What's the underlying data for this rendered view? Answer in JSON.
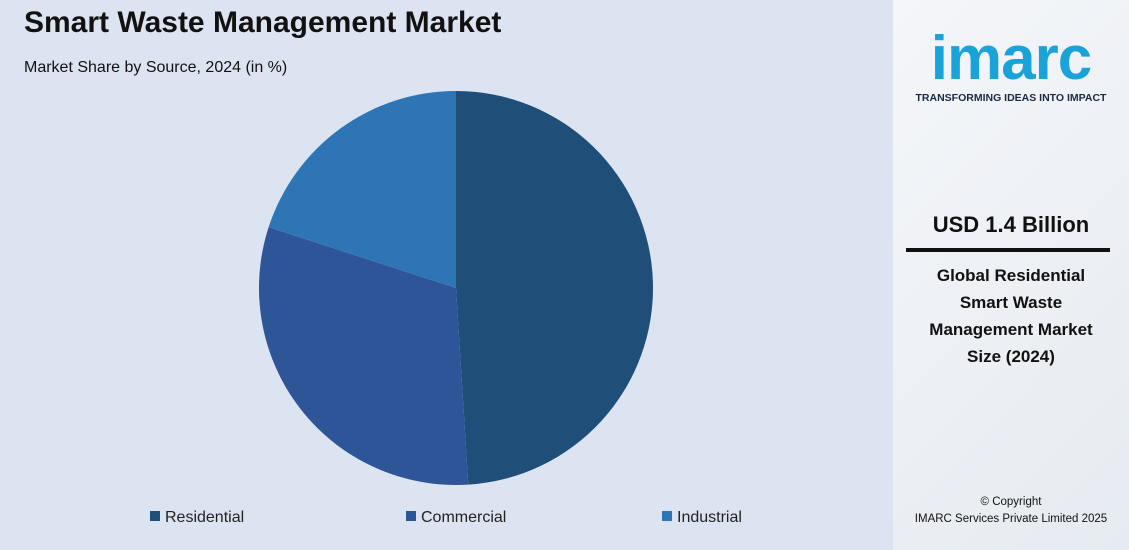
{
  "chart_data": {
    "type": "pie",
    "title": "Smart Waste Management Market",
    "subtitle": "Market Share by Source, 2024 (in %)",
    "categories": [
      "Residential",
      "Commercial",
      "Industrial"
    ],
    "values": [
      49,
      31,
      20
    ],
    "colors": [
      "#1f4e79",
      "#2e5597",
      "#2e75b6"
    ]
  },
  "sidebar": {
    "logo": "imarc",
    "tagline": "TRANSFORMING IDEAS INTO IMPACT",
    "value": "USD 1.4 Billion",
    "description": "Global Residential Smart Waste Management Market Size (2024)",
    "copyright": "© Copyright",
    "company": "IMARC Services Private Limited 2025"
  }
}
